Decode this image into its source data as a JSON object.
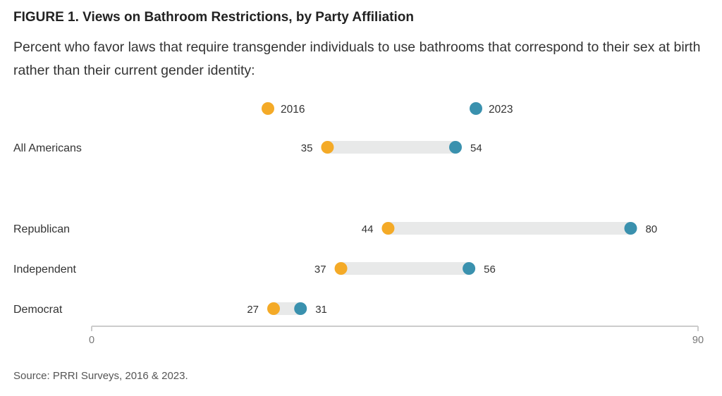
{
  "figure": {
    "title": "FIGURE 1.  Views on Bathroom Restrictions, by Party Affiliation",
    "subtitle": "Percent who favor laws that require transgender individuals to use bathrooms that correspond to their sex at birth rather than their current gender identity:",
    "source": "Source: PRRI Surveys, 2016 & 2023."
  },
  "chart_data": {
    "type": "dumbbell",
    "categories": [
      "All Americans",
      "Republican",
      "Independent",
      "Democrat"
    ],
    "series": [
      {
        "name": "2016",
        "values": [
          35,
          44,
          37,
          27
        ],
        "color": "#F4AA27"
      },
      {
        "name": "2023",
        "values": [
          54,
          80,
          56,
          31
        ],
        "color": "#3A91AE"
      }
    ],
    "xlim": [
      0,
      90
    ],
    "x_ticks": [
      "0",
      "90"
    ],
    "connector_color": "#E8E9E9",
    "axis_color": "#CCCCCC",
    "legend_position": "top",
    "grid": false
  }
}
